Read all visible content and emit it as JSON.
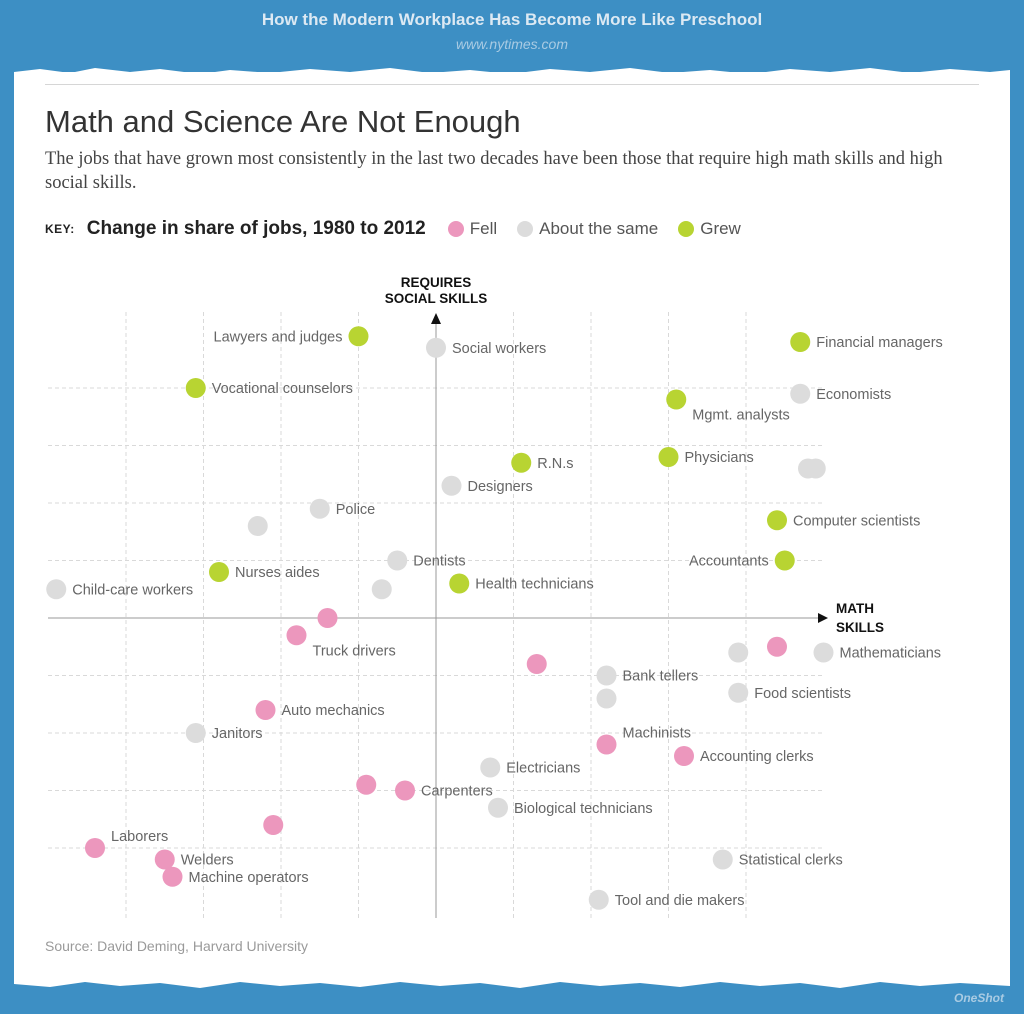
{
  "banner": {
    "title": "How the Modern Workplace Has Become More Like Preschool",
    "url": "www.nytimes.com"
  },
  "headline": "Math and Science Are Not Enough",
  "subhead": "The jobs that have grown most consistently in the last two decades have been those that require high math skills and high social skills.",
  "key": {
    "label": "KEY:",
    "title": "Change in share of jobs, 1980 to 2012",
    "items": [
      {
        "label": "Fell",
        "color": "#ec97bd"
      },
      {
        "label": "About the same",
        "color": "#dcdcdc"
      },
      {
        "label": "Grew",
        "color": "#b8d432"
      }
    ]
  },
  "source": "Source: David Deming, Harvard University",
  "credit": "OneShot",
  "chart_data": {
    "type": "scatter",
    "title": "Math and Science Are Not Enough",
    "xlabel": [
      "MATH",
      "SKILLS"
    ],
    "ylabel": [
      "REQUIRES",
      "SOCIAL SKILLS"
    ],
    "xlim": [
      -5,
      5
    ],
    "ylim": [
      -5.2,
      4.7
    ],
    "grid": true,
    "colors": {
      "fell": "#ec97bd",
      "same": "#dcdcdc",
      "grew": "#b8d432"
    },
    "points": [
      {
        "label": "Lawyers and judges",
        "x": -1.0,
        "y": 4.9,
        "status": "grew",
        "label_side": "left"
      },
      {
        "label": "Social workers",
        "x": 0.0,
        "y": 4.7,
        "status": "same",
        "label_side": "right"
      },
      {
        "label": "Financial managers",
        "x": 4.7,
        "y": 4.8,
        "status": "grew",
        "label_side": "right"
      },
      {
        "label": "Vocational counselors",
        "x": -3.1,
        "y": 4.0,
        "status": "grew",
        "label_side": "right"
      },
      {
        "label": "Economists",
        "x": 4.7,
        "y": 3.9,
        "status": "same",
        "label_side": "right"
      },
      {
        "label": "Mgmt. analysts",
        "x": 3.1,
        "y": 3.8,
        "status": "grew",
        "label_side": "below-right"
      },
      {
        "label": "R.N.s",
        "x": 1.1,
        "y": 2.7,
        "status": "grew",
        "label_side": "right"
      },
      {
        "label": "Physicians",
        "x": 3.0,
        "y": 2.8,
        "status": "grew",
        "label_side": "right"
      },
      {
        "label": "",
        "x": 4.8,
        "y": 2.6,
        "status": "same",
        "label_side": "none"
      },
      {
        "label": "",
        "x": 4.9,
        "y": 2.6,
        "status": "same",
        "label_side": "none"
      },
      {
        "label": "Designers",
        "x": 0.2,
        "y": 2.3,
        "status": "same",
        "label_side": "right"
      },
      {
        "label": "Police",
        "x": -1.5,
        "y": 1.9,
        "status": "same",
        "label_side": "right"
      },
      {
        "label": "",
        "x": -2.3,
        "y": 1.6,
        "status": "same",
        "label_side": "none"
      },
      {
        "label": "Computer scientists",
        "x": 4.4,
        "y": 1.7,
        "status": "grew",
        "label_side": "right"
      },
      {
        "label": "Dentists",
        "x": -0.5,
        "y": 1.0,
        "status": "same",
        "label_side": "right"
      },
      {
        "label": "Accountants",
        "x": 4.5,
        "y": 1.0,
        "status": "grew",
        "label_side": "left"
      },
      {
        "label": "Nurses aides",
        "x": -2.8,
        "y": 0.8,
        "status": "grew",
        "label_side": "right"
      },
      {
        "label": "Health technicians",
        "x": 0.3,
        "y": 0.6,
        "status": "grew",
        "label_side": "right"
      },
      {
        "label": "",
        "x": -0.7,
        "y": 0.5,
        "status": "same",
        "label_side": "none"
      },
      {
        "label": "Child-care workers",
        "x": -4.9,
        "y": 0.5,
        "status": "same",
        "label_side": "right"
      },
      {
        "label": "",
        "x": -1.4,
        "y": 0.0,
        "status": "fell",
        "label_side": "none"
      },
      {
        "label": "Truck drivers",
        "x": -1.8,
        "y": -0.3,
        "status": "fell",
        "label_side": "below-right"
      },
      {
        "label": "",
        "x": 4.4,
        "y": -0.5,
        "status": "fell",
        "label_side": "none"
      },
      {
        "label": "",
        "x": 3.9,
        "y": -0.6,
        "status": "same",
        "label_side": "none"
      },
      {
        "label": "Mathematicians",
        "x": 5.0,
        "y": -0.6,
        "status": "same",
        "label_side": "right"
      },
      {
        "label": "",
        "x": 1.3,
        "y": -0.8,
        "status": "fell",
        "label_side": "none"
      },
      {
        "label": "Bank tellers",
        "x": 2.2,
        "y": -1.0,
        "status": "same",
        "label_side": "right"
      },
      {
        "label": "",
        "x": 2.2,
        "y": -1.4,
        "status": "same",
        "label_side": "none"
      },
      {
        "label": "Food scientists",
        "x": 3.9,
        "y": -1.3,
        "status": "same",
        "label_side": "right"
      },
      {
        "label": "Auto mechanics",
        "x": -2.2,
        "y": -1.6,
        "status": "fell",
        "label_side": "right"
      },
      {
        "label": "Janitors",
        "x": -3.1,
        "y": -2.0,
        "status": "same",
        "label_side": "right"
      },
      {
        "label": "Machinists",
        "x": 2.2,
        "y": -2.2,
        "status": "fell",
        "label_side": "above-right"
      },
      {
        "label": "Accounting clerks",
        "x": 3.2,
        "y": -2.4,
        "status": "fell",
        "label_side": "right"
      },
      {
        "label": "Electricians",
        "x": 0.7,
        "y": -2.6,
        "status": "same",
        "label_side": "right"
      },
      {
        "label": "",
        "x": -0.9,
        "y": -2.9,
        "status": "fell",
        "label_side": "none"
      },
      {
        "label": "Carpenters",
        "x": -0.4,
        "y": -3.0,
        "status": "fell",
        "label_side": "right"
      },
      {
        "label": "Biological technicians",
        "x": 0.8,
        "y": -3.3,
        "status": "same",
        "label_side": "right"
      },
      {
        "label": "",
        "x": -2.1,
        "y": -3.6,
        "status": "fell",
        "label_side": "none"
      },
      {
        "label": "Laborers",
        "x": -4.4,
        "y": -4.0,
        "status": "fell",
        "label_side": "above-right"
      },
      {
        "label": "Welders",
        "x": -3.5,
        "y": -4.2,
        "status": "fell",
        "label_side": "right"
      },
      {
        "label": "Machine operators",
        "x": -3.4,
        "y": -4.5,
        "status": "fell",
        "label_side": "right"
      },
      {
        "label": "Statistical clerks",
        "x": 3.7,
        "y": -4.2,
        "status": "same",
        "label_side": "right"
      },
      {
        "label": "Tool and die makers",
        "x": 2.1,
        "y": -4.9,
        "status": "same",
        "label_side": "right"
      }
    ]
  }
}
